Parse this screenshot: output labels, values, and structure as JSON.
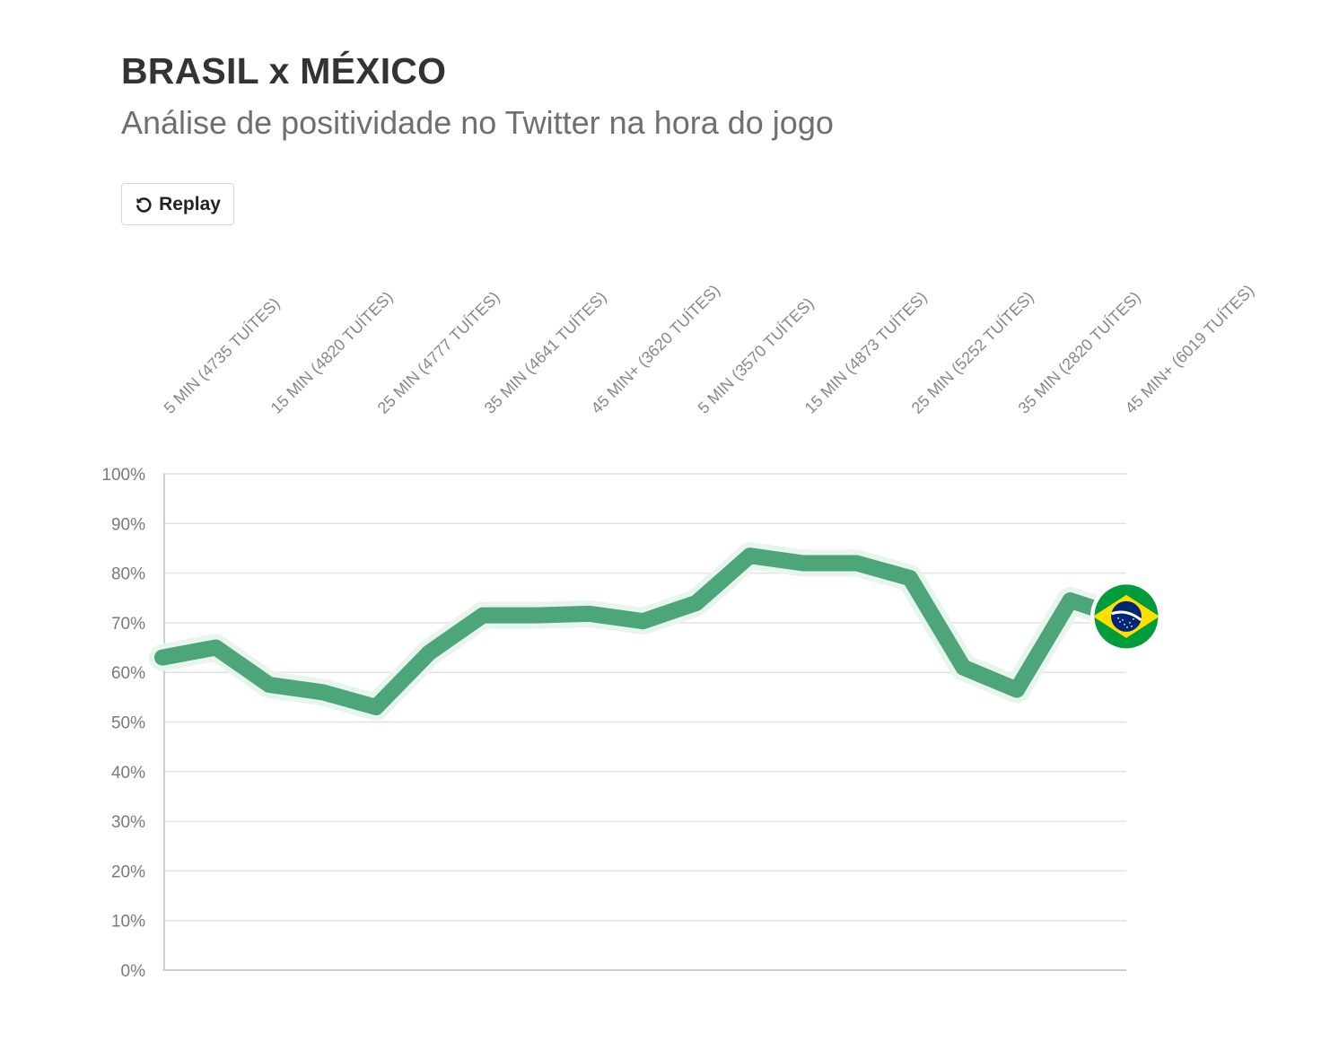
{
  "header": {
    "title": "BRASIL x MÉXICO",
    "subtitle": "Análise de positividade no Twitter na hora do jogo"
  },
  "controls": {
    "replay_label": "Replay",
    "replay_icon": "replay-icon"
  },
  "end_marker": {
    "icon": "brazil-flag-icon",
    "colors": {
      "green": "#009b3a",
      "yellow": "#fedf00",
      "blue": "#002776"
    }
  },
  "colors": {
    "line": "#4da57a",
    "line_halo": "#e8f4ee",
    "grid": "#e2e2e2",
    "axis": "#cfcfcf"
  },
  "chart_data": {
    "type": "line",
    "title": "BRASIL x MÉXICO",
    "subtitle": "Análise de positividade no Twitter na hora do jogo",
    "categories": [
      "5 MIN (4735 TUÍTES)",
      "15 MIN (4820 TUÍTES)",
      "25 MIN (4777 TUÍTES)",
      "35 MIN (4641 TUÍTES)",
      "45 MIN+ (3620 TUÍTES)",
      "5 MIN (3570 TUÍTES)",
      "15 MIN (4873 TUÍTES)",
      "25 MIN (5252 TUÍTES)",
      "35 MIN (2820 TUÍTES)",
      "45 MIN+ (6019 TUÍTES)"
    ],
    "x": [
      0,
      0.5,
      1,
      1.5,
      2,
      2.5,
      3,
      3.5,
      4,
      4.5,
      5,
      5.5,
      6,
      6.5,
      7,
      7.5,
      8,
      8.5,
      9
    ],
    "values": [
      63,
      65,
      57.5,
      56,
      53,
      64,
      71.5,
      71.5,
      71.8,
      70.3,
      74,
      83.5,
      82,
      82,
      79,
      61,
      56.5,
      74.5,
      71
    ],
    "ylim": [
      0,
      100
    ],
    "yticks": [
      "0%",
      "10%",
      "20%",
      "30%",
      "40%",
      "50%",
      "60%",
      "70%",
      "80%",
      "90%",
      "100%"
    ],
    "grid": true,
    "xlabel": "",
    "ylabel": ""
  }
}
